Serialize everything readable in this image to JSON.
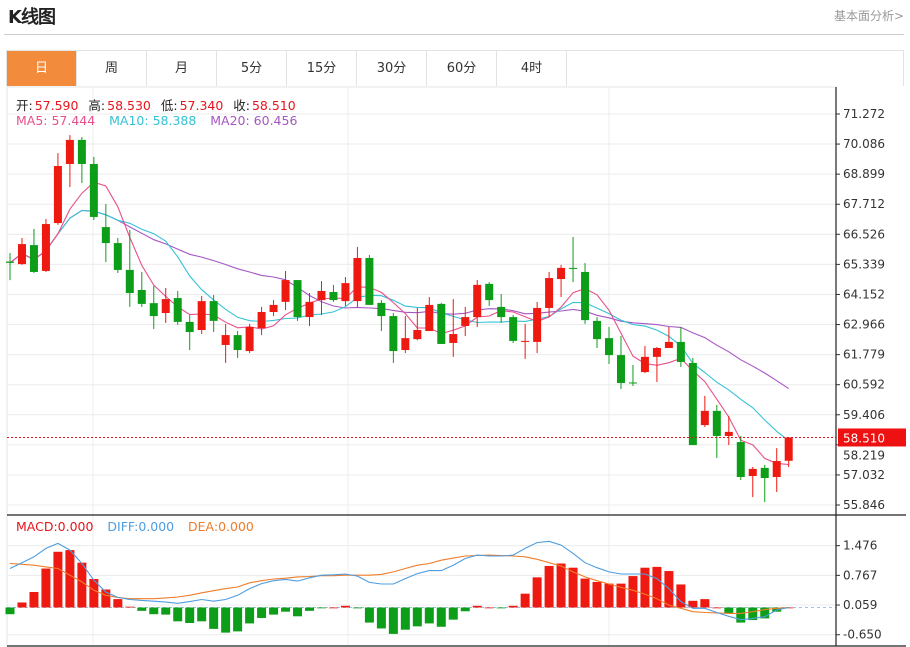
{
  "header": {
    "title": "K线图",
    "link": "基本面分析>"
  },
  "tabs": [
    {
      "label": "日",
      "active": true
    },
    {
      "label": "周"
    },
    {
      "label": "月"
    },
    {
      "label": "5分"
    },
    {
      "label": "15分"
    },
    {
      "label": "30分"
    },
    {
      "label": "60分"
    },
    {
      "label": "4时"
    }
  ],
  "legend": {
    "ohlc": [
      {
        "label": "开:",
        "value": "57.590"
      },
      {
        "label": "高:",
        "value": "58.530"
      },
      {
        "label": "低:",
        "value": "57.340"
      },
      {
        "label": "收:",
        "value": "58.510"
      }
    ],
    "ma": [
      {
        "label": "MA5: 57.444",
        "color": "#e8508b"
      },
      {
        "label": "MA10: 58.388",
        "color": "#35c2d6"
      },
      {
        "label": "MA20: 60.456",
        "color": "#a656c2"
      }
    ],
    "macd": [
      {
        "label": "MACD:0.000",
        "color": "#e8141c"
      },
      {
        "label": "DIFF:0.000",
        "color": "#4e9de0"
      },
      {
        "label": "DEA:0.000",
        "color": "#ef7d2b"
      }
    ]
  },
  "colors": {
    "up": "#ee1a12",
    "down": "#0d9e19",
    "ma5": "#e8508b",
    "ma10": "#35c2d6",
    "ma20": "#a656c2",
    "diff": "#4e9de0",
    "dea": "#ef7d2b",
    "active_tab": "#f28b3c"
  },
  "chart_data": [
    {
      "type": "candlestick",
      "y_ticks": [
        "71.272",
        "70.086",
        "68.899",
        "67.712",
        "66.526",
        "65.339",
        "64.152",
        "62.966",
        "61.779",
        "60.592",
        "59.406",
        "58.219",
        "57.032",
        "55.846"
      ],
      "ylim": [
        55.846,
        71.272
      ],
      "grid": true,
      "last_price": "58.510",
      "moving_averages": [
        5,
        10,
        20
      ],
      "ohlc": [
        [
          65.45,
          65.4,
          65.79,
          64.72
        ],
        [
          65.35,
          66.14,
          66.38,
          65.32
        ],
        [
          66.1,
          65.04,
          66.74,
          65.0
        ],
        [
          65.08,
          66.93,
          67.13,
          65.04
        ],
        [
          66.97,
          69.22,
          69.73,
          66.9
        ],
        [
          69.3,
          70.25,
          70.44,
          68.39
        ],
        [
          70.25,
          69.3,
          70.36,
          68.55
        ],
        [
          69.3,
          67.21,
          69.58,
          67.09
        ],
        [
          66.81,
          66.18,
          67.72,
          65.43
        ],
        [
          66.18,
          65.12,
          66.38,
          65.0
        ],
        [
          65.12,
          64.21,
          66.7,
          63.66
        ],
        [
          64.33,
          63.78,
          65.04,
          63.66
        ],
        [
          63.81,
          63.3,
          64.49,
          62.79
        ],
        [
          63.42,
          63.97,
          64.41,
          63.03
        ],
        [
          64.01,
          63.07,
          64.29,
          62.95
        ],
        [
          63.07,
          62.67,
          63.34,
          61.96
        ],
        [
          62.75,
          63.89,
          64.09,
          62.59
        ],
        [
          63.89,
          63.11,
          64.13,
          62.67
        ],
        [
          62.16,
          62.55,
          62.99,
          61.45
        ],
        [
          62.55,
          61.96,
          62.71,
          61.65
        ],
        [
          61.92,
          62.87,
          62.99,
          61.84
        ],
        [
          62.83,
          63.46,
          63.66,
          62.55
        ],
        [
          63.46,
          63.74,
          63.93,
          63.3
        ],
        [
          63.86,
          64.72,
          65.08,
          63.54
        ],
        [
          64.72,
          63.26,
          64.72,
          63.11
        ],
        [
          63.26,
          63.86,
          64.21,
          62.91
        ],
        [
          63.93,
          64.29,
          64.68,
          63.34
        ],
        [
          64.25,
          63.93,
          64.53,
          63.86
        ],
        [
          63.89,
          64.6,
          64.84,
          63.7
        ],
        [
          63.89,
          65.59,
          66.03,
          63.66
        ],
        [
          65.59,
          63.74,
          65.71,
          63.74
        ],
        [
          63.82,
          63.3,
          63.93,
          62.71
        ],
        [
          63.3,
          61.92,
          63.42,
          61.45
        ],
        [
          61.96,
          62.43,
          63.3,
          61.84
        ],
        [
          62.39,
          62.75,
          63.62,
          62.35
        ],
        [
          62.71,
          63.74,
          64.05,
          62.71
        ],
        [
          63.78,
          62.2,
          63.82,
          62.2
        ],
        [
          62.24,
          62.59,
          63.97,
          61.69
        ],
        [
          62.91,
          63.26,
          63.66,
          62.51
        ],
        [
          63.26,
          64.53,
          64.72,
          62.87
        ],
        [
          64.57,
          63.93,
          64.64,
          63.7
        ],
        [
          63.66,
          63.26,
          64.17,
          63.03
        ],
        [
          63.26,
          62.32,
          63.34,
          62.24
        ],
        [
          62.28,
          62.32,
          62.99,
          61.61
        ],
        [
          62.28,
          63.62,
          63.86,
          61.84
        ],
        [
          63.62,
          64.8,
          65.04,
          63.26
        ],
        [
          64.76,
          65.2,
          65.32,
          64.05
        ],
        [
          65.2,
          65.16,
          66.42,
          64.64
        ],
        [
          65.04,
          63.14,
          65.39,
          62.99
        ],
        [
          63.11,
          62.39,
          63.26,
          62.04
        ],
        [
          62.43,
          61.76,
          62.87,
          61.41
        ],
        [
          61.76,
          60.66,
          62.51,
          60.42
        ],
        [
          60.68,
          60.64,
          61.37,
          60.54
        ],
        [
          61.09,
          61.69,
          62.12,
          61.05
        ],
        [
          61.69,
          62.04,
          62.08,
          60.7
        ],
        [
          62.04,
          62.28,
          62.87,
          62.04
        ],
        [
          62.28,
          61.49,
          62.87,
          61.29
        ],
        [
          61.45,
          58.21,
          61.65,
          58.21
        ],
        [
          59.0,
          59.56,
          60.15,
          58.92
        ],
        [
          59.56,
          58.57,
          59.8,
          57.7
        ],
        [
          58.57,
          58.73,
          59.36,
          58.21
        ],
        [
          58.33,
          56.95,
          58.57,
          56.83
        ],
        [
          56.99,
          57.27,
          57.35,
          56.16
        ],
        [
          57.31,
          56.91,
          57.43,
          55.96
        ],
        [
          56.95,
          57.58,
          58.09,
          56.36
        ],
        [
          57.59,
          58.51,
          58.53,
          57.34
        ]
      ]
    },
    {
      "type": "bar+line",
      "y_ticks": [
        "1.476",
        "0.767",
        "0.059",
        "-0.650"
      ],
      "ylim": [
        -0.91,
        2.17
      ],
      "macd": [
        -0.16,
        0.12,
        0.37,
        0.93,
        1.33,
        1.37,
        1.07,
        0.68,
        0.43,
        0.2,
        0.02,
        -0.08,
        -0.16,
        -0.17,
        -0.33,
        -0.37,
        -0.33,
        -0.51,
        -0.6,
        -0.57,
        -0.38,
        -0.25,
        -0.17,
        -0.1,
        -0.21,
        -0.08,
        -0.01,
        0,
        0.04,
        -0.02,
        -0.36,
        -0.5,
        -0.63,
        -0.53,
        -0.45,
        -0.38,
        -0.46,
        -0.29,
        -0.09,
        0.04,
        0,
        -0.02,
        0.04,
        0.33,
        0.72,
        0.99,
        1.05,
        0.95,
        0.69,
        0.61,
        0.57,
        0.57,
        0.75,
        0.95,
        0.97,
        0.87,
        0.55,
        0.16,
        0.2,
        0,
        -0.13,
        -0.36,
        -0.3,
        -0.26,
        -0.1,
        0
      ],
      "diff": [
        0.93,
        1.07,
        1.21,
        1.41,
        1.53,
        1.37,
        1.05,
        0.65,
        0.37,
        0.24,
        0.19,
        0.17,
        0.15,
        0.13,
        0.1,
        0.14,
        0.19,
        0.15,
        0.19,
        0.29,
        0.45,
        0.57,
        0.64,
        0.67,
        0.63,
        0.71,
        0.77,
        0.78,
        0.8,
        0.75,
        0.6,
        0.56,
        0.56,
        0.69,
        0.81,
        0.88,
        0.88,
        1.01,
        1.17,
        1.25,
        1.23,
        1.23,
        1.25,
        1.41,
        1.55,
        1.58,
        1.49,
        1.29,
        1.07,
        0.95,
        0.85,
        0.8,
        0.8,
        0.8,
        0.69,
        0.45,
        0.14,
        -0.02,
        -0.02,
        -0.12,
        -0.21,
        -0.29,
        -0.26,
        -0.22,
        -0.06,
        0
      ],
      "dea": [
        1.05,
        1.03,
        1.01,
        0.97,
        0.93,
        0.77,
        0.61,
        0.41,
        0.29,
        0.24,
        0.21,
        0.21,
        0.21,
        0.23,
        0.25,
        0.29,
        0.35,
        0.4,
        0.45,
        0.49,
        0.59,
        0.64,
        0.68,
        0.7,
        0.73,
        0.74,
        0.76,
        0.76,
        0.77,
        0.77,
        0.77,
        0.79,
        0.85,
        0.93,
        1.01,
        1.05,
        1.13,
        1.18,
        1.23,
        1.24,
        1.25,
        1.24,
        1.23,
        1.21,
        1.15,
        1.07,
        0.99,
        0.85,
        0.73,
        0.64,
        0.56,
        0.48,
        0.41,
        0.32,
        0.21,
        0.06,
        -0.02,
        -0.1,
        -0.12,
        -0.13,
        -0.14,
        -0.14,
        -0.1,
        -0.05,
        -0.02,
        0
      ]
    }
  ]
}
